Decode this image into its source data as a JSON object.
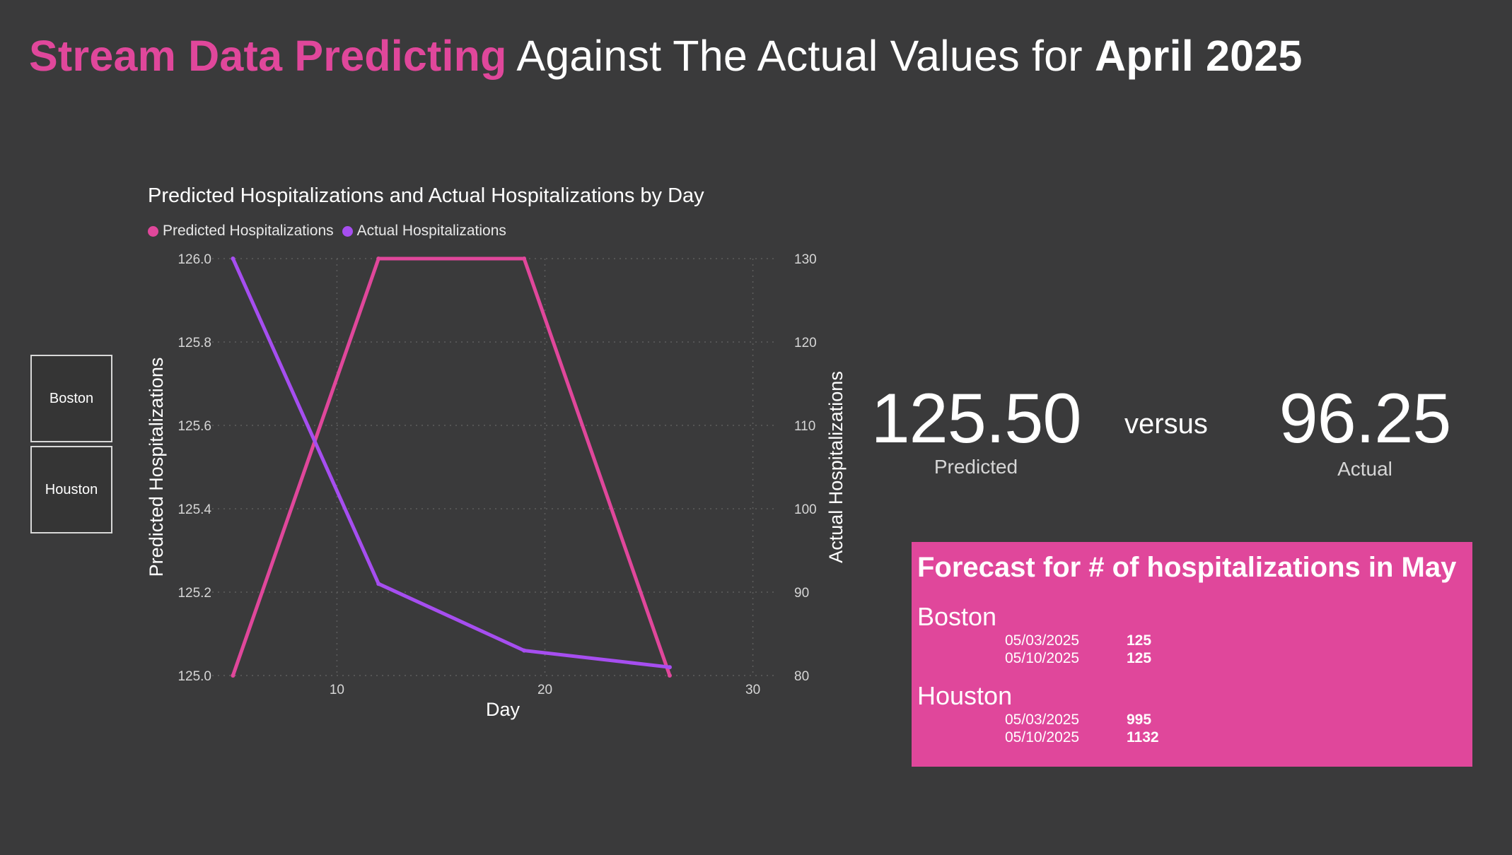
{
  "header": {
    "title_part1": "Stream Data Predicting",
    "title_part2": " Against The Actual Values for ",
    "title_part3": "April 2025"
  },
  "slicer": {
    "options": [
      {
        "label": "Boston"
      },
      {
        "label": "Houston"
      }
    ]
  },
  "kpis": {
    "predicted_value": "125.50",
    "predicted_label": "Predicted",
    "versus_label": "versus",
    "actual_value": "96.25",
    "actual_label": "Actual"
  },
  "forecast": {
    "title": "Forecast for # of hospitalizations in May",
    "cities": [
      {
        "name": "Boston",
        "rows": [
          {
            "date": "05/03/2025",
            "value": "125"
          },
          {
            "date": "05/10/2025",
            "value": "125"
          }
        ]
      },
      {
        "name": "Houston",
        "rows": [
          {
            "date": "05/03/2025",
            "value": "995"
          },
          {
            "date": "05/10/2025",
            "value": "1132"
          }
        ]
      }
    ]
  },
  "colors": {
    "predicted": "#e0479b",
    "actual": "#a64ef0",
    "background": "#3a3a3b",
    "forecast_bg": "#e0479b"
  },
  "chart_data": {
    "type": "line",
    "title": "Predicted Hospitalizations and Actual Hospitalizations by Day",
    "xlabel": "Day",
    "ylabel": "Predicted Hospitalizations",
    "y2label": "Actual Hospitalizations",
    "xlim": [
      4.0,
      31.0
    ],
    "ylim": [
      125.0,
      126.0
    ],
    "y2lim": [
      80,
      130
    ],
    "x_ticks": [
      10,
      20,
      30
    ],
    "y_ticks": [
      "125.0",
      "125.2",
      "125.4",
      "125.6",
      "125.8",
      "126.0"
    ],
    "y2_ticks": [
      "80",
      "90",
      "100",
      "110",
      "120",
      "130"
    ],
    "grid": true,
    "legend_position": "top-left",
    "series": [
      {
        "name": "Predicted Hospitalizations",
        "axis": "left",
        "x": [
          5,
          12,
          19,
          26
        ],
        "values": [
          125.0,
          126.0,
          126.0,
          125.0
        ]
      },
      {
        "name": "Actual Hospitalizations",
        "axis": "right",
        "x": [
          5,
          12,
          19,
          26
        ],
        "values": [
          130,
          91,
          83,
          81
        ]
      }
    ]
  }
}
